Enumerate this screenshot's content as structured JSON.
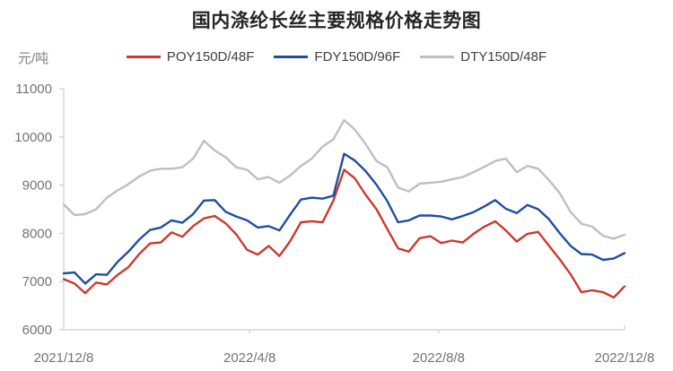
{
  "header": {
    "title": "国内涤纶长丝主要规格价格走势图"
  },
  "y_axis_unit": "元/吨",
  "legend": {
    "items": [
      {
        "id": "poy",
        "label": "POY150D/48F",
        "color": "#cc392d"
      },
      {
        "id": "fdy",
        "label": "FDY150D/96F",
        "color": "#1f4d9f"
      },
      {
        "id": "dty",
        "label": "DTY150D/48F",
        "color": "#bfbfbf"
      }
    ]
  },
  "colors": {
    "axis_line": "#c6c6c6",
    "tick_label": "#737373",
    "title_text": "#262626",
    "legend_text": "#404040",
    "unit_text": "#7f7f7f",
    "background": "#ffffff"
  },
  "chart_data": {
    "type": "line",
    "title": "国内涤纶长丝主要规格价格走势图",
    "xlabel": "",
    "ylabel": "元/吨",
    "ylim": [
      6000,
      11000
    ],
    "y_ticks": [
      6000,
      7000,
      8000,
      9000,
      10000,
      11000
    ],
    "grid": false,
    "legend_position": "top",
    "x_axis": {
      "start_label": "2021/12/8",
      "end_label": "2022/12/8",
      "tick_labels": [
        "2021/12/8",
        "2022/4/8",
        "2022/8/8",
        "2022/12/8"
      ],
      "tick_day_offsets": [
        0,
        121,
        244,
        365
      ],
      "total_days": 365
    },
    "x_dates": [
      "2021/12/8",
      "2021/12/15",
      "2021/12/22",
      "2021/12/29",
      "2022/1/5",
      "2022/1/12",
      "2022/1/19",
      "2022/1/26",
      "2022/2/2",
      "2022/2/9",
      "2022/2/16",
      "2022/2/23",
      "2022/3/2",
      "2022/3/9",
      "2022/3/16",
      "2022/3/23",
      "2022/3/30",
      "2022/4/6",
      "2022/4/13",
      "2022/4/20",
      "2022/4/27",
      "2022/5/4",
      "2022/5/11",
      "2022/5/18",
      "2022/5/25",
      "2022/6/1",
      "2022/6/8",
      "2022/6/15",
      "2022/6/22",
      "2022/6/29",
      "2022/7/6",
      "2022/7/13",
      "2022/7/20",
      "2022/7/27",
      "2022/8/3",
      "2022/8/10",
      "2022/8/17",
      "2022/8/24",
      "2022/8/31",
      "2022/9/7",
      "2022/9/14",
      "2022/9/21",
      "2022/9/28",
      "2022/10/5",
      "2022/10/12",
      "2022/10/19",
      "2022/10/26",
      "2022/11/2",
      "2022/11/9",
      "2022/11/16",
      "2022/11/23",
      "2022/11/30",
      "2022/12/8"
    ],
    "series": [
      {
        "name": "POY150D/48F",
        "color": "#cc392d",
        "values": [
          7050,
          6960,
          6760,
          6980,
          6940,
          7140,
          7300,
          7570,
          7790,
          7810,
          8020,
          7930,
          8150,
          8310,
          8360,
          8210,
          7980,
          7660,
          7560,
          7740,
          7530,
          7840,
          8230,
          8250,
          8230,
          8680,
          9320,
          9140,
          8800,
          8500,
          8090,
          7690,
          7620,
          7900,
          7940,
          7800,
          7850,
          7810,
          7990,
          8140,
          8250,
          8060,
          7830,
          7990,
          8030,
          7740,
          7460,
          7150,
          6780,
          6820,
          6780,
          6670,
          6900
        ]
      },
      {
        "name": "FDY150D/96F",
        "color": "#1f4d9f",
        "values": [
          7170,
          7190,
          6960,
          7150,
          7140,
          7410,
          7620,
          7870,
          8070,
          8120,
          8270,
          8220,
          8400,
          8680,
          8690,
          8450,
          8350,
          8270,
          8120,
          8150,
          8060,
          8390,
          8700,
          8740,
          8720,
          8780,
          9650,
          9510,
          9290,
          9010,
          8670,
          8230,
          8270,
          8370,
          8370,
          8350,
          8290,
          8360,
          8440,
          8560,
          8690,
          8510,
          8420,
          8590,
          8500,
          8290,
          8000,
          7740,
          7570,
          7560,
          7450,
          7480,
          7590
        ]
      },
      {
        "name": "DTY150D/48F",
        "color": "#bfbfbf",
        "values": [
          8600,
          8380,
          8400,
          8500,
          8740,
          8890,
          9020,
          9180,
          9300,
          9340,
          9340,
          9370,
          9550,
          9920,
          9720,
          9580,
          9370,
          9320,
          9120,
          9170,
          9050,
          9200,
          9400,
          9550,
          9800,
          9950,
          10350,
          10150,
          9850,
          9500,
          9370,
          8950,
          8870,
          9030,
          9050,
          9070,
          9120,
          9170,
          9270,
          9380,
          9500,
          9550,
          9270,
          9400,
          9340,
          9100,
          8830,
          8440,
          8200,
          8140,
          7950,
          7890,
          7970
        ]
      }
    ]
  }
}
